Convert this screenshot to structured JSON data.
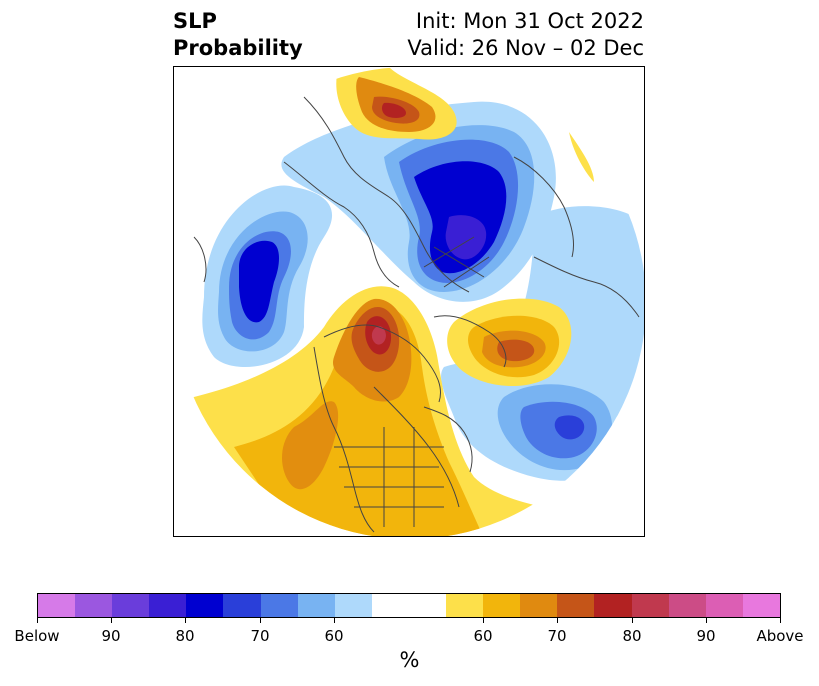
{
  "title": {
    "left_line1": "SLP",
    "left_line2": "Probability",
    "right_line1": "Init: Mon 31 Oct 2022",
    "right_line2": "Valid: 26 Nov – 02 Dec"
  },
  "colorbar": {
    "colors": [
      "#d67ae8",
      "#9b57e0",
      "#6a3ddb",
      "#3a1fd4",
      "#0000d0",
      "#2a3fd9",
      "#4b78e6",
      "#78b3f2",
      "#aed9fb",
      "#ffffff",
      "#fde04a",
      "#f2b50c",
      "#e08a10",
      "#c55518",
      "#b22222",
      "#c0394e",
      "#cc4c86",
      "#dc5eb4",
      "#e878de"
    ],
    "tick_labels": [
      "Below",
      "90",
      "80",
      "70",
      "60",
      "60",
      "70",
      "80",
      "90",
      "Above"
    ],
    "unit_label": "%"
  },
  "map": {
    "projection": "north polar stereographic",
    "anomaly_regions": [
      {
        "name": "north-pacific-low",
        "color": "blue",
        "max_level": "80"
      },
      {
        "name": "arctic-siberia-low",
        "color": "blue",
        "max_level": "90"
      },
      {
        "name": "north-atlantic-low",
        "color": "blue",
        "max_level": "80"
      },
      {
        "name": "alaska-canada-high",
        "color": "red",
        "max_level": "80"
      },
      {
        "name": "east-siberia-high",
        "color": "red",
        "max_level": "80"
      },
      {
        "name": "greenland-atlantic-high",
        "color": "orange",
        "max_level": "70"
      }
    ]
  }
}
